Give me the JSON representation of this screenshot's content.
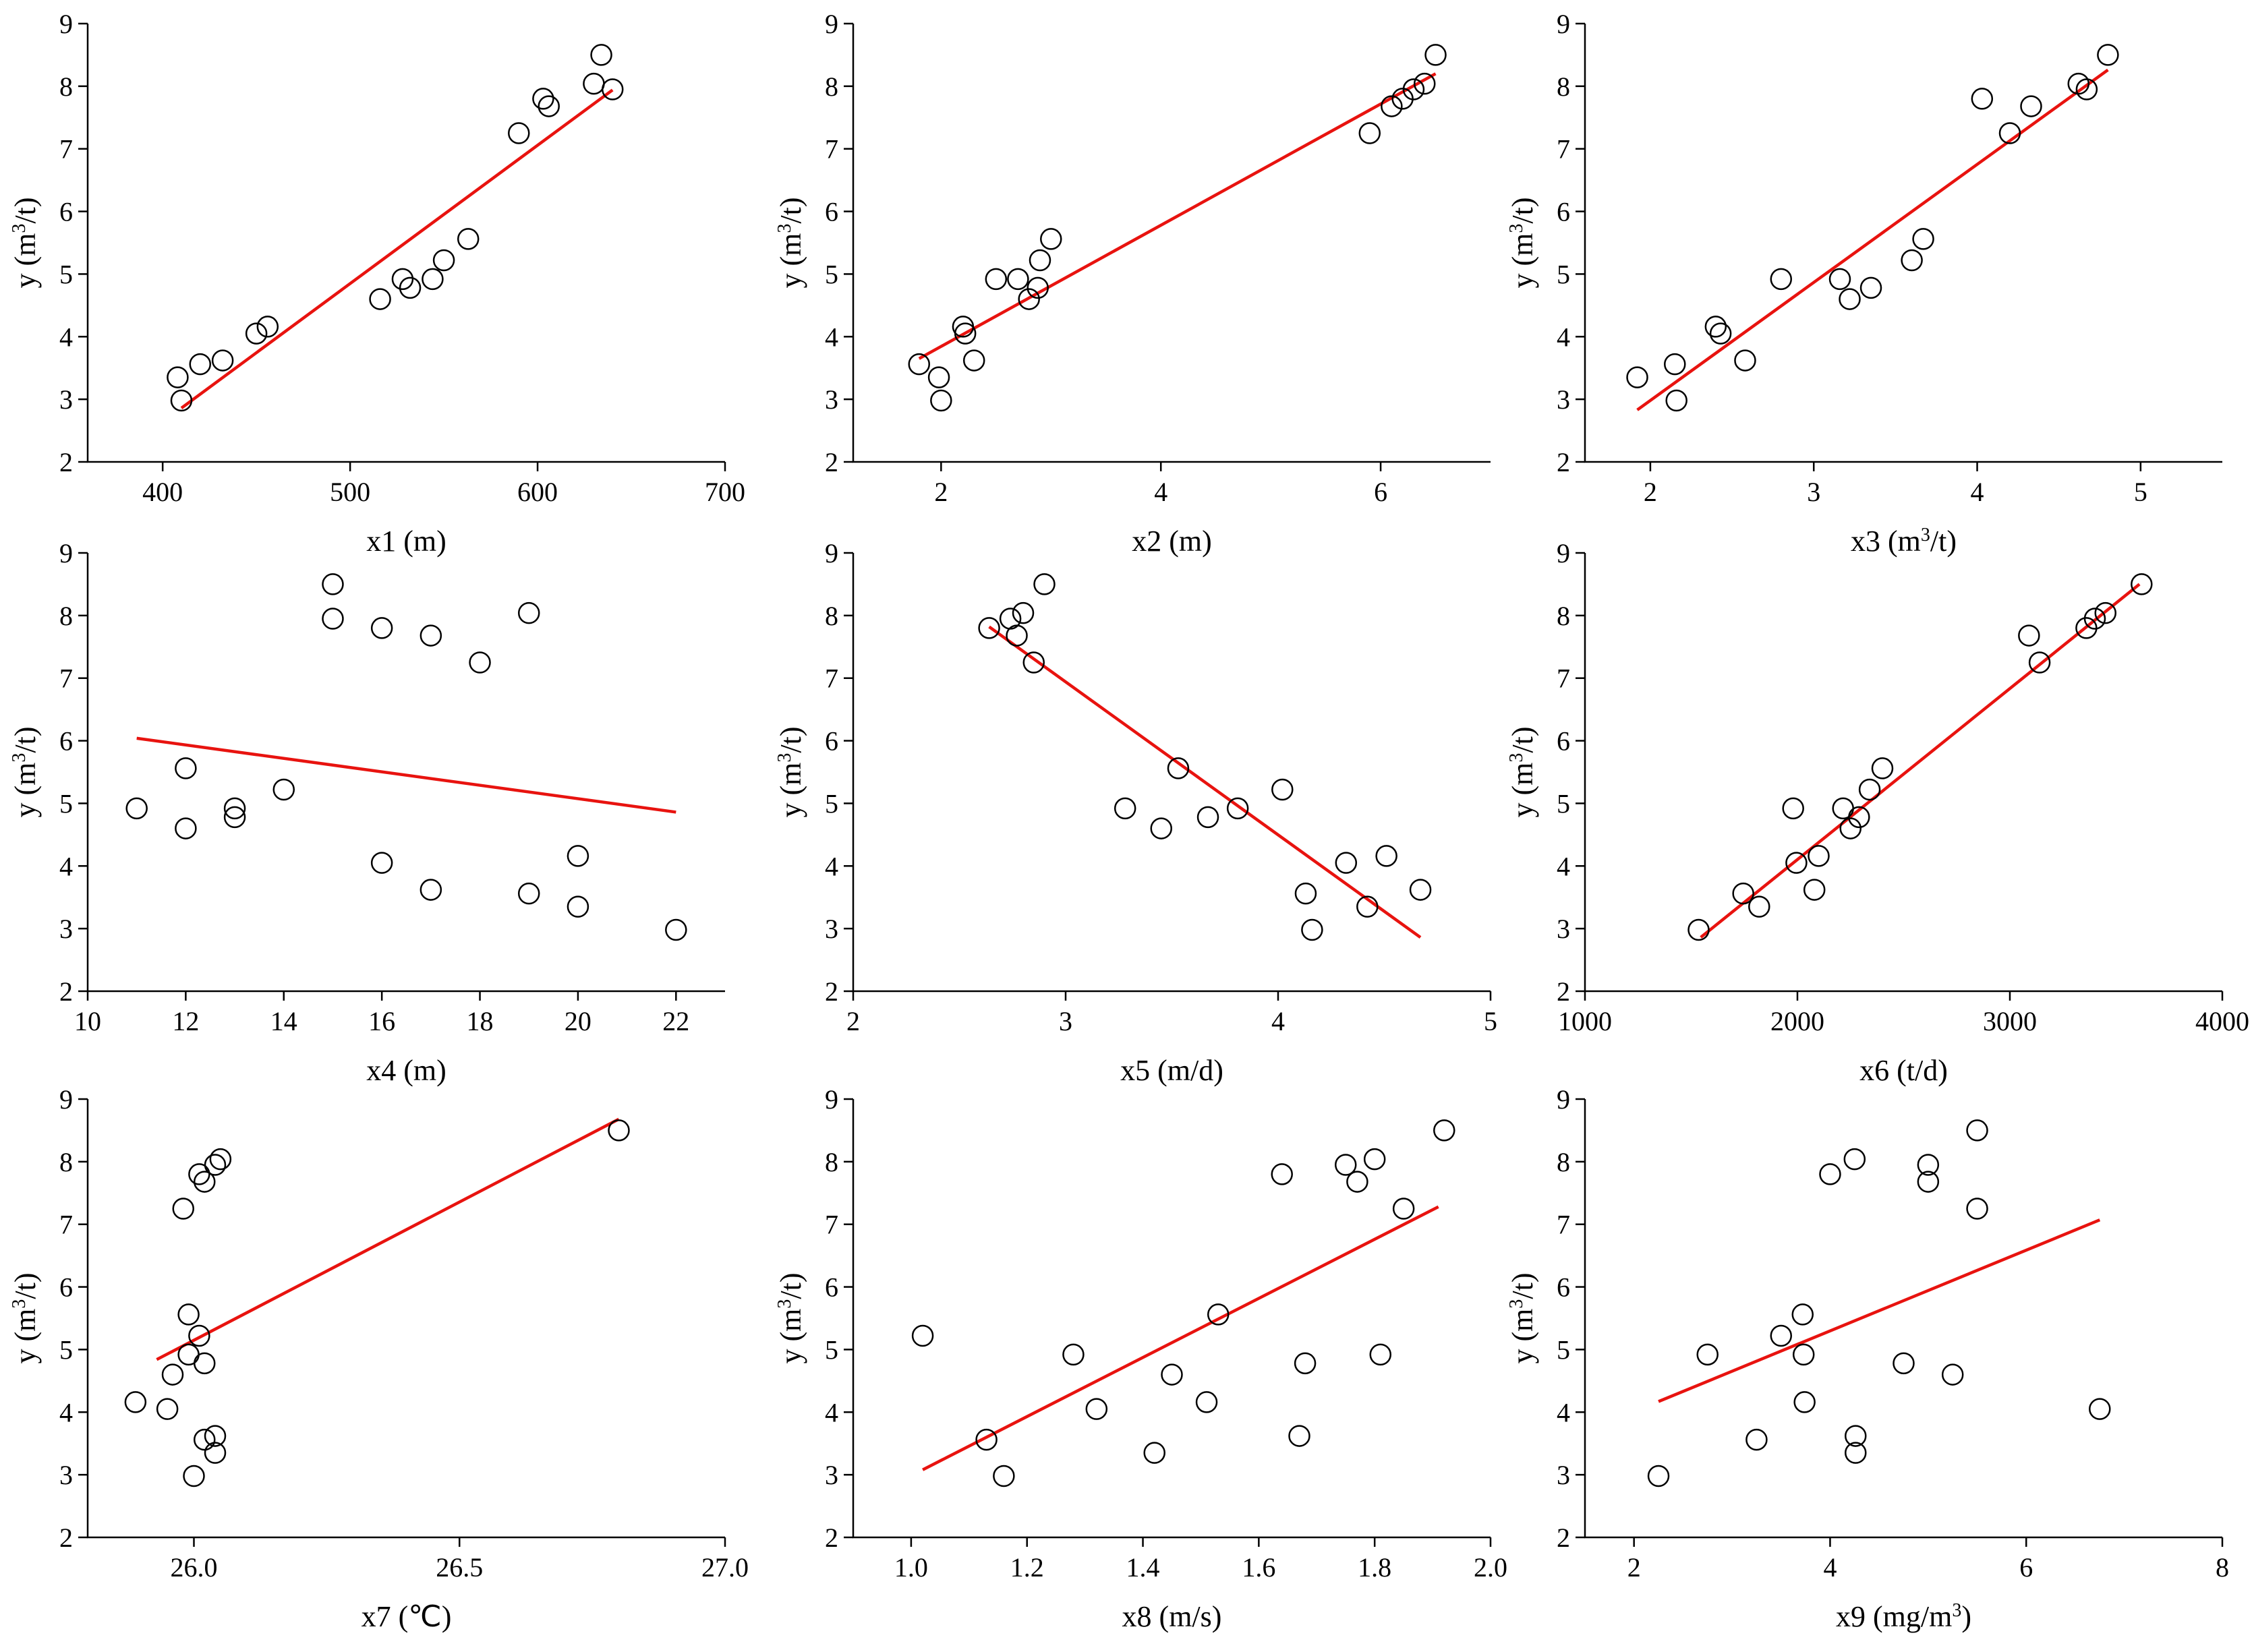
{
  "colors": {
    "fit": "#e8130f",
    "marker": "#000000",
    "axis": "#000000"
  },
  "chart_data": [
    {
      "type": "scatter",
      "xlabel": "x1 (m)",
      "ylabel": "y (m3/t)",
      "xlim": [
        360,
        700
      ],
      "ylim": [
        2,
        9
      ],
      "xticks": [
        400,
        500,
        600,
        700
      ],
      "xtick_labels": [
        "400",
        "500",
        "600",
        "700"
      ],
      "yticks": [
        2,
        3,
        4,
        5,
        6,
        7,
        8,
        9
      ],
      "ytick_labels": [
        "2",
        "3",
        "4",
        "5",
        "6",
        "7",
        "8",
        "9"
      ],
      "points": [
        [
          408,
          3.35
        ],
        [
          410,
          2.98
        ],
        [
          420,
          3.56
        ],
        [
          432,
          3.62
        ],
        [
          450,
          4.05
        ],
        [
          456,
          4.16
        ],
        [
          516,
          4.6
        ],
        [
          528,
          4.92
        ],
        [
          532,
          4.78
        ],
        [
          544,
          4.92
        ],
        [
          550,
          5.22
        ],
        [
          563,
          5.56
        ],
        [
          590,
          7.25
        ],
        [
          603,
          7.8
        ],
        [
          606,
          7.68
        ],
        [
          630,
          8.04
        ],
        [
          634,
          8.5
        ],
        [
          640,
          7.95
        ]
      ],
      "fit": [
        [
          410,
          2.86
        ],
        [
          640,
          7.94
        ]
      ]
    },
    {
      "type": "scatter",
      "xlabel": "x2 (m)",
      "ylabel": "y (m3/t)",
      "xlim": [
        1.2,
        7.0
      ],
      "ylim": [
        2,
        9
      ],
      "xticks": [
        2,
        4,
        6
      ],
      "xtick_labels": [
        "2",
        "4",
        "6"
      ],
      "yticks": [
        2,
        3,
        4,
        5,
        6,
        7,
        8,
        9
      ],
      "ytick_labels": [
        "2",
        "3",
        "4",
        "5",
        "6",
        "7",
        "8",
        "9"
      ],
      "points": [
        [
          1.8,
          3.56
        ],
        [
          1.98,
          3.35
        ],
        [
          2.0,
          2.98
        ],
        [
          2.2,
          4.16
        ],
        [
          2.22,
          4.05
        ],
        [
          2.3,
          3.62
        ],
        [
          2.5,
          4.92
        ],
        [
          2.7,
          4.92
        ],
        [
          2.8,
          4.6
        ],
        [
          2.88,
          4.78
        ],
        [
          2.9,
          5.22
        ],
        [
          3.0,
          5.56
        ],
        [
          5.9,
          7.25
        ],
        [
          6.1,
          7.68
        ],
        [
          6.2,
          7.8
        ],
        [
          6.3,
          7.95
        ],
        [
          6.4,
          8.04
        ],
        [
          6.5,
          8.5
        ]
      ],
      "fit": [
        [
          1.8,
          3.65
        ],
        [
          6.5,
          8.2
        ]
      ]
    },
    {
      "type": "scatter",
      "xlabel": "x3 (m3/t)",
      "ylabel": "y (m3/t)",
      "xlim": [
        1.6,
        5.5
      ],
      "ylim": [
        2,
        9
      ],
      "xticks": [
        2,
        3,
        4,
        5
      ],
      "xtick_labels": [
        "2",
        "3",
        "4",
        "5"
      ],
      "yticks": [
        2,
        3,
        4,
        5,
        6,
        7,
        8,
        9
      ],
      "ytick_labels": [
        "2",
        "3",
        "4",
        "5",
        "6",
        "7",
        "8",
        "9"
      ],
      "points": [
        [
          1.92,
          3.35
        ],
        [
          2.15,
          3.56
        ],
        [
          2.16,
          2.98
        ],
        [
          2.4,
          4.16
        ],
        [
          2.43,
          4.05
        ],
        [
          2.58,
          3.62
        ],
        [
          2.8,
          4.92
        ],
        [
          3.16,
          4.92
        ],
        [
          3.22,
          4.6
        ],
        [
          3.35,
          4.78
        ],
        [
          3.6,
          5.22
        ],
        [
          3.67,
          5.56
        ],
        [
          4.03,
          7.8
        ],
        [
          4.2,
          7.25
        ],
        [
          4.33,
          7.68
        ],
        [
          4.62,
          8.04
        ],
        [
          4.67,
          7.95
        ],
        [
          4.8,
          8.5
        ]
      ],
      "fit": [
        [
          1.92,
          2.83
        ],
        [
          4.8,
          8.26
        ]
      ]
    },
    {
      "type": "scatter",
      "xlabel": "x4 (m)",
      "ylabel": "y (m3/t)",
      "xlim": [
        10,
        23
      ],
      "ylim": [
        2,
        9
      ],
      "xticks": [
        10,
        12,
        14,
        16,
        18,
        20,
        22
      ],
      "xtick_labels": [
        "10",
        "12",
        "14",
        "16",
        "18",
        "20",
        "22"
      ],
      "yticks": [
        2,
        3,
        4,
        5,
        6,
        7,
        8,
        9
      ],
      "ytick_labels": [
        "2",
        "3",
        "4",
        "5",
        "6",
        "7",
        "8",
        "9"
      ],
      "points": [
        [
          11,
          4.92
        ],
        [
          12,
          4.6
        ],
        [
          12,
          5.56
        ],
        [
          13,
          4.78
        ],
        [
          13,
          4.92
        ],
        [
          14,
          5.22
        ],
        [
          15,
          7.95
        ],
        [
          15,
          8.5
        ],
        [
          16,
          7.8
        ],
        [
          16,
          4.05
        ],
        [
          17,
          7.68
        ],
        [
          17,
          3.62
        ],
        [
          18,
          7.25
        ],
        [
          19,
          8.04
        ],
        [
          19,
          3.56
        ],
        [
          20,
          4.16
        ],
        [
          20,
          3.35
        ],
        [
          22,
          2.98
        ]
      ],
      "fit": [
        [
          11,
          6.04
        ],
        [
          22,
          4.86
        ]
      ]
    },
    {
      "type": "scatter",
      "xlabel": "x5 (m/d)",
      "ylabel": "y (m3/t)",
      "xlim": [
        2,
        5
      ],
      "ylim": [
        2,
        9
      ],
      "xticks": [
        2,
        3,
        4,
        5
      ],
      "xtick_labels": [
        "2",
        "3",
        "4",
        "5"
      ],
      "yticks": [
        2,
        3,
        4,
        5,
        6,
        7,
        8,
        9
      ],
      "ytick_labels": [
        "2",
        "3",
        "4",
        "5",
        "6",
        "7",
        "8",
        "9"
      ],
      "points": [
        [
          2.64,
          7.8
        ],
        [
          2.74,
          7.95
        ],
        [
          2.77,
          7.68
        ],
        [
          2.8,
          8.04
        ],
        [
          2.85,
          7.25
        ],
        [
          2.9,
          8.5
        ],
        [
          3.28,
          4.92
        ],
        [
          3.45,
          4.6
        ],
        [
          3.53,
          5.56
        ],
        [
          3.67,
          4.78
        ],
        [
          3.81,
          4.92
        ],
        [
          4.02,
          5.22
        ],
        [
          4.13,
          3.56
        ],
        [
          4.16,
          2.98
        ],
        [
          4.32,
          4.05
        ],
        [
          4.42,
          3.35
        ],
        [
          4.51,
          4.16
        ],
        [
          4.67,
          3.62
        ]
      ],
      "fit": [
        [
          2.64,
          7.82
        ],
        [
          4.67,
          2.86
        ]
      ]
    },
    {
      "type": "scatter",
      "xlabel": "x6 (t/d)",
      "ylabel": "y (m3/t)",
      "xlim": [
        1000,
        4000
      ],
      "ylim": [
        2,
        9
      ],
      "xticks": [
        1000,
        2000,
        3000,
        4000
      ],
      "xtick_labels": [
        "1000",
        "2000",
        "3000",
        "4000"
      ],
      "yticks": [
        2,
        3,
        4,
        5,
        6,
        7,
        8,
        9
      ],
      "ytick_labels": [
        "2",
        "3",
        "4",
        "5",
        "6",
        "7",
        "8",
        "9"
      ],
      "points": [
        [
          1535,
          2.98
        ],
        [
          1745,
          3.56
        ],
        [
          1820,
          3.35
        ],
        [
          1980,
          4.92
        ],
        [
          1995,
          4.05
        ],
        [
          2080,
          3.62
        ],
        [
          2100,
          4.16
        ],
        [
          2215,
          4.92
        ],
        [
          2250,
          4.6
        ],
        [
          2290,
          4.78
        ],
        [
          2340,
          5.22
        ],
        [
          2400,
          5.56
        ],
        [
          3090,
          7.68
        ],
        [
          3140,
          7.25
        ],
        [
          3360,
          7.8
        ],
        [
          3400,
          7.95
        ],
        [
          3450,
          8.04
        ],
        [
          3620,
          8.5
        ]
      ],
      "fit": [
        [
          1545,
          2.86
        ],
        [
          3610,
          8.5
        ]
      ]
    },
    {
      "type": "scatter",
      "xlabel": "x7 (℃)",
      "ylabel": "y (m3/t)",
      "xlim": [
        25.8,
        27.0
      ],
      "ylim": [
        2,
        9
      ],
      "xticks": [
        26.0,
        26.5,
        27.0
      ],
      "xtick_labels": [
        "26.0",
        "26.5",
        "27.0"
      ],
      "yticks": [
        2,
        3,
        4,
        5,
        6,
        7,
        8,
        9
      ],
      "ytick_labels": [
        "2",
        "3",
        "4",
        "5",
        "6",
        "7",
        "8",
        "9"
      ],
      "points": [
        [
          25.89,
          4.16
        ],
        [
          25.95,
          4.05
        ],
        [
          25.96,
          4.6
        ],
        [
          25.98,
          7.25
        ],
        [
          25.99,
          4.92
        ],
        [
          25.99,
          5.56
        ],
        [
          26.0,
          2.98
        ],
        [
          26.01,
          7.8
        ],
        [
          26.01,
          5.22
        ],
        [
          26.02,
          7.68
        ],
        [
          26.02,
          4.78
        ],
        [
          26.02,
          3.56
        ],
        [
          26.04,
          7.95
        ],
        [
          26.04,
          3.35
        ],
        [
          26.04,
          3.62
        ],
        [
          26.05,
          8.04
        ],
        [
          26.8,
          8.5
        ]
      ],
      "fit": [
        [
          25.93,
          4.84
        ],
        [
          26.8,
          8.68
        ]
      ]
    },
    {
      "type": "scatter",
      "xlabel": "x8 (m/s)",
      "ylabel": "y (m3/t)",
      "xlim": [
        0.9,
        2.0
      ],
      "ylim": [
        2,
        9
      ],
      "xticks": [
        1.0,
        1.2,
        1.4,
        1.6,
        1.8,
        2.0
      ],
      "xtick_labels": [
        "1.0",
        "1.2",
        "1.4",
        "1.6",
        "1.8",
        "2.0"
      ],
      "yticks": [
        2,
        3,
        4,
        5,
        6,
        7,
        8,
        9
      ],
      "ytick_labels": [
        "2",
        "3",
        "4",
        "5",
        "6",
        "7",
        "8",
        "9"
      ],
      "points": [
        [
          1.02,
          5.22
        ],
        [
          1.13,
          3.56
        ],
        [
          1.16,
          2.98
        ],
        [
          1.28,
          4.92
        ],
        [
          1.32,
          4.05
        ],
        [
          1.42,
          3.35
        ],
        [
          1.45,
          4.6
        ],
        [
          1.51,
          4.16
        ],
        [
          1.53,
          5.56
        ],
        [
          1.64,
          7.8
        ],
        [
          1.67,
          3.62
        ],
        [
          1.68,
          4.78
        ],
        [
          1.75,
          7.95
        ],
        [
          1.77,
          7.68
        ],
        [
          1.8,
          8.04
        ],
        [
          1.81,
          4.92
        ],
        [
          1.85,
          7.25
        ],
        [
          1.92,
          8.5
        ]
      ],
      "fit": [
        [
          1.02,
          3.08
        ],
        [
          1.91,
          7.28
        ]
      ]
    },
    {
      "type": "scatter",
      "xlabel": "x9 (mg/m3)",
      "ylabel": "y (m3/t)",
      "xlim": [
        1.5,
        8.0
      ],
      "ylim": [
        2,
        9
      ],
      "xticks": [
        2,
        4,
        6,
        8
      ],
      "xtick_labels": [
        "2",
        "4",
        "6",
        "8"
      ],
      "yticks": [
        2,
        3,
        4,
        5,
        6,
        7,
        8,
        9
      ],
      "ytick_labels": [
        "2",
        "3",
        "4",
        "5",
        "6",
        "7",
        "8",
        "9"
      ],
      "points": [
        [
          2.25,
          2.98
        ],
        [
          2.75,
          4.92
        ],
        [
          3.25,
          3.56
        ],
        [
          3.5,
          5.22
        ],
        [
          3.72,
          5.56
        ],
        [
          3.73,
          4.92
        ],
        [
          3.74,
          4.16
        ],
        [
          4.0,
          7.8
        ],
        [
          4.25,
          8.04
        ],
        [
          4.26,
          3.62
        ],
        [
          4.26,
          3.35
        ],
        [
          4.75,
          4.78
        ],
        [
          5.0,
          7.95
        ],
        [
          5.0,
          7.68
        ],
        [
          5.25,
          4.6
        ],
        [
          5.5,
          8.5
        ],
        [
          5.5,
          7.25
        ],
        [
          6.75,
          4.05
        ]
      ],
      "fit": [
        [
          2.25,
          4.17
        ],
        [
          6.75,
          7.07
        ]
      ]
    }
  ]
}
